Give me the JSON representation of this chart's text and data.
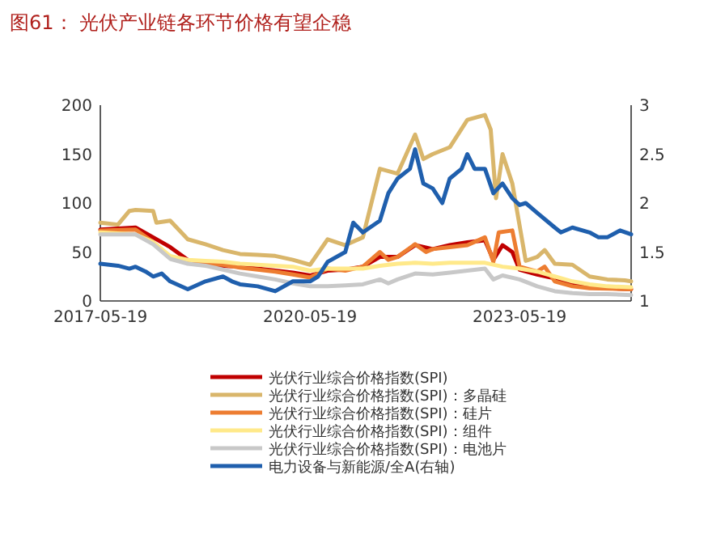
{
  "chart_data": {
    "type": "line",
    "title": "图61：  光伏产业链各环节价格有望企稳",
    "xlim": [
      "2017-05-19",
      "2024-12-22"
    ],
    "xticks": [
      "2017-05-19",
      "2020-05-19",
      "2023-05-19"
    ],
    "ylim": [
      0,
      200
    ],
    "yticks": [
      0,
      50,
      100,
      150,
      200
    ],
    "y2lim": [
      1,
      3
    ],
    "y2ticks": [
      1,
      1.5,
      2,
      2.5,
      3
    ],
    "legend": "bottom",
    "grid": false,
    "line_style": "solid",
    "marker": "none",
    "series": [
      {
        "name": "光伏行业综合价格指数(SPI)",
        "color": "#c00000",
        "x": [
          "2017-05-19",
          "2017-11-19",
          "2018-02-19",
          "2018-05-19",
          "2018-08-19",
          "2018-11-19",
          "2019-02-19",
          "2019-05-19",
          "2019-08-19",
          "2019-11-19",
          "2020-02-19",
          "2020-05-19",
          "2020-08-19",
          "2020-11-19",
          "2021-02-19",
          "2021-05-19",
          "2021-08-19",
          "2021-11-19",
          "2022-02-19",
          "2022-05-19",
          "2022-08-19",
          "2022-11-19",
          "2023-01-02",
          "2023-02-19",
          "2023-04-11",
          "2023-05-19",
          "2023-08-19",
          "2023-11-19",
          "2024-02-19",
          "2024-05-19",
          "2024-08-19",
          "2024-12-22"
        ],
        "values": [
          73,
          75,
          65,
          55,
          42,
          38,
          36,
          35,
          33,
          31,
          29,
          26,
          31,
          32,
          35,
          45,
          45,
          57,
          53,
          57,
          60,
          62,
          42,
          57,
          50,
          32,
          27,
          23,
          17,
          14,
          13,
          12
        ]
      },
      {
        "name": "光伏行业综合价格指数(SPI)：多晶硅",
        "color": "#d9b66b",
        "x": [
          "2017-05-19",
          "2017-08-19",
          "2017-10-18",
          "2017-11-19",
          "2018-02-19",
          "2018-03-08",
          "2018-05-19",
          "2018-08-19",
          "2018-11-19",
          "2019-02-19",
          "2019-05-19",
          "2019-08-19",
          "2019-11-19",
          "2020-02-19",
          "2020-05-19",
          "2020-08-19",
          "2020-11-19",
          "2021-02-19",
          "2021-05-19",
          "2021-08-19",
          "2021-11-19",
          "2022-01-01",
          "2022-02-19",
          "2022-05-19",
          "2022-08-19",
          "2022-11-19",
          "2022-12-19",
          "2023-01-16",
          "2023-02-19",
          "2023-04-11",
          "2023-06-20",
          "2023-08-19",
          "2023-09-27",
          "2023-11-19",
          "2024-02-19",
          "2024-05-19",
          "2024-08-19",
          "2024-11-19",
          "2024-12-22"
        ],
        "values": [
          80,
          78,
          92,
          93,
          92,
          80,
          82,
          63,
          58,
          52,
          48,
          47,
          46,
          42,
          37,
          63,
          57,
          65,
          135,
          130,
          170,
          145,
          150,
          157,
          185,
          190,
          175,
          105,
          150,
          120,
          41,
          45,
          52,
          38,
          37,
          25,
          22,
          21,
          20
        ]
      },
      {
        "name": "光伏行业综合价格指数(SPI)：硅片",
        "color": "#ed7d31",
        "x": [
          "2017-05-19",
          "2017-11-19",
          "2018-02-19",
          "2018-05-19",
          "2018-08-19",
          "2018-11-19",
          "2019-02-19",
          "2019-05-19",
          "2019-08-19",
          "2019-11-19",
          "2020-02-19",
          "2020-05-19",
          "2020-08-19",
          "2020-11-19",
          "2021-02-19",
          "2021-05-19",
          "2021-07-02",
          "2021-08-19",
          "2021-11-19",
          "2022-01-15",
          "2022-02-19",
          "2022-05-19",
          "2022-08-19",
          "2022-11-19",
          "2023-01-02",
          "2023-01-30",
          "2023-04-11",
          "2023-05-19",
          "2023-08-19",
          "2023-09-27",
          "2023-11-19",
          "2024-02-19",
          "2024-05-19",
          "2024-12-22"
        ],
        "values": [
          72,
          73,
          60,
          45,
          40,
          38,
          37,
          34,
          32,
          30,
          27,
          24,
          33,
          31,
          35,
          50,
          42,
          45,
          58,
          50,
          53,
          55,
          57,
          65,
          40,
          70,
          72,
          35,
          30,
          35,
          20,
          15,
          13,
          12
        ]
      },
      {
        "name": "光伏行业综合价格指数(SPI)：组件",
        "color": "#ffe98a",
        "x": [
          "2017-05-19",
          "2017-11-19",
          "2018-02-19",
          "2018-05-19",
          "2018-08-19",
          "2018-11-19",
          "2019-02-19",
          "2019-05-19",
          "2019-08-19",
          "2019-11-19",
          "2020-02-19",
          "2020-05-19",
          "2020-08-19",
          "2020-11-19",
          "2021-02-19",
          "2021-05-19",
          "2021-08-19",
          "2021-11-19",
          "2022-02-19",
          "2022-05-19",
          "2022-08-19",
          "2022-11-19",
          "2023-02-19",
          "2023-05-19",
          "2023-08-19",
          "2023-11-19",
          "2024-02-19",
          "2024-05-19",
          "2024-08-19",
          "2024-12-22"
        ],
        "values": [
          70,
          68,
          60,
          46,
          42,
          41,
          40,
          38,
          37,
          36,
          35,
          31,
          33,
          33,
          33,
          36,
          38,
          39,
          38,
          39,
          39,
          39,
          35,
          33,
          30,
          25,
          20,
          17,
          15,
          14
        ]
      },
      {
        "name": "光伏行业综合价格指数(SPI)：电池片",
        "color": "#c8c8c8",
        "x": [
          "2017-05-19",
          "2017-11-19",
          "2018-02-19",
          "2018-05-19",
          "2018-08-19",
          "2018-11-19",
          "2019-02-19",
          "2019-05-19",
          "2019-08-19",
          "2019-11-19",
          "2020-02-19",
          "2020-05-19",
          "2020-08-19",
          "2020-11-19",
          "2021-02-19",
          "2021-05-19",
          "2021-07-02",
          "2021-08-19",
          "2021-11-19",
          "2022-02-19",
          "2022-05-19",
          "2022-08-19",
          "2022-11-19",
          "2023-01-02",
          "2023-02-19",
          "2023-05-19",
          "2023-08-19",
          "2023-11-19",
          "2024-02-19",
          "2024-05-19",
          "2024-08-19",
          "2024-12-22"
        ],
        "values": [
          68,
          68,
          58,
          43,
          38,
          36,
          32,
          28,
          25,
          22,
          18,
          15,
          15,
          16,
          17,
          22,
          18,
          22,
          28,
          27,
          29,
          31,
          33,
          22,
          26,
          22,
          15,
          10,
          8,
          7,
          7,
          6
        ]
      },
      {
        "name": "电力设备与新能源/全A(右轴)",
        "color": "#1f5fad",
        "axis": "y2",
        "x": [
          "2017-05-19",
          "2017-08-19",
          "2017-10-18",
          "2017-11-19",
          "2018-01-11",
          "2018-02-19",
          "2018-04-05",
          "2018-05-19",
          "2018-08-19",
          "2018-11-19",
          "2019-02-19",
          "2019-04-07",
          "2019-05-19",
          "2019-08-19",
          "2019-11-19",
          "2020-02-19",
          "2020-05-19",
          "2020-06-30",
          "2020-08-19",
          "2020-11-19",
          "2020-12-31",
          "2021-02-19",
          "2021-05-19",
          "2021-07-02",
          "2021-08-19",
          "2021-10-23",
          "2021-11-19",
          "2022-01-01",
          "2022-02-19",
          "2022-04-10",
          "2022-05-19",
          "2022-07-20",
          "2022-08-19",
          "2022-09-26",
          "2022-11-19",
          "2023-01-02",
          "2023-02-19",
          "2023-04-11",
          "2023-05-19",
          "2023-06-20",
          "2023-08-19",
          "2023-11-19",
          "2023-12-21",
          "2024-02-19",
          "2024-05-19",
          "2024-07-05",
          "2024-08-19",
          "2024-10-25",
          "2024-12-22"
        ],
        "values": [
          1.38,
          1.36,
          1.33,
          1.35,
          1.3,
          1.25,
          1.28,
          1.2,
          1.12,
          1.2,
          1.25,
          1.2,
          1.17,
          1.15,
          1.1,
          1.2,
          1.2,
          1.25,
          1.4,
          1.5,
          1.8,
          1.7,
          1.82,
          2.1,
          2.25,
          2.35,
          2.55,
          2.2,
          2.15,
          2.0,
          2.25,
          2.35,
          2.5,
          2.35,
          2.35,
          2.1,
          2.2,
          2.05,
          1.98,
          2.0,
          1.9,
          1.75,
          1.7,
          1.75,
          1.7,
          1.65,
          1.65,
          1.72,
          1.68
        ]
      }
    ]
  }
}
